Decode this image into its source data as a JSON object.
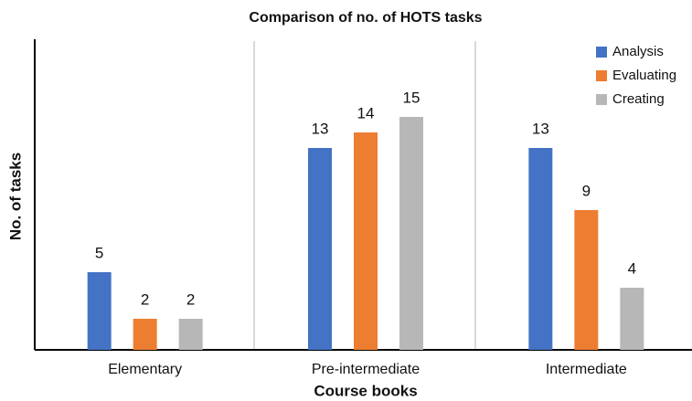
{
  "chart_data": {
    "type": "bar",
    "title": "Comparison of no. of HOTS tasks",
    "x_label": "Course books",
    "y_label": "No. of tasks",
    "categories": [
      "Elementary",
      "Pre-intermediate",
      "Intermediate"
    ],
    "series": [
      {
        "name": "Analysis",
        "color": "#4472c4",
        "values": [
          5,
          13,
          13
        ]
      },
      {
        "name": "Evaluating",
        "color": "#ed7d31",
        "values": [
          2,
          14,
          9
        ]
      },
      {
        "name": "Creating",
        "color": "#b7b7b7",
        "values": [
          2,
          15,
          4
        ]
      }
    ],
    "ylim": [
      0,
      20
    ],
    "legend": "top-right",
    "data_labels": true
  }
}
